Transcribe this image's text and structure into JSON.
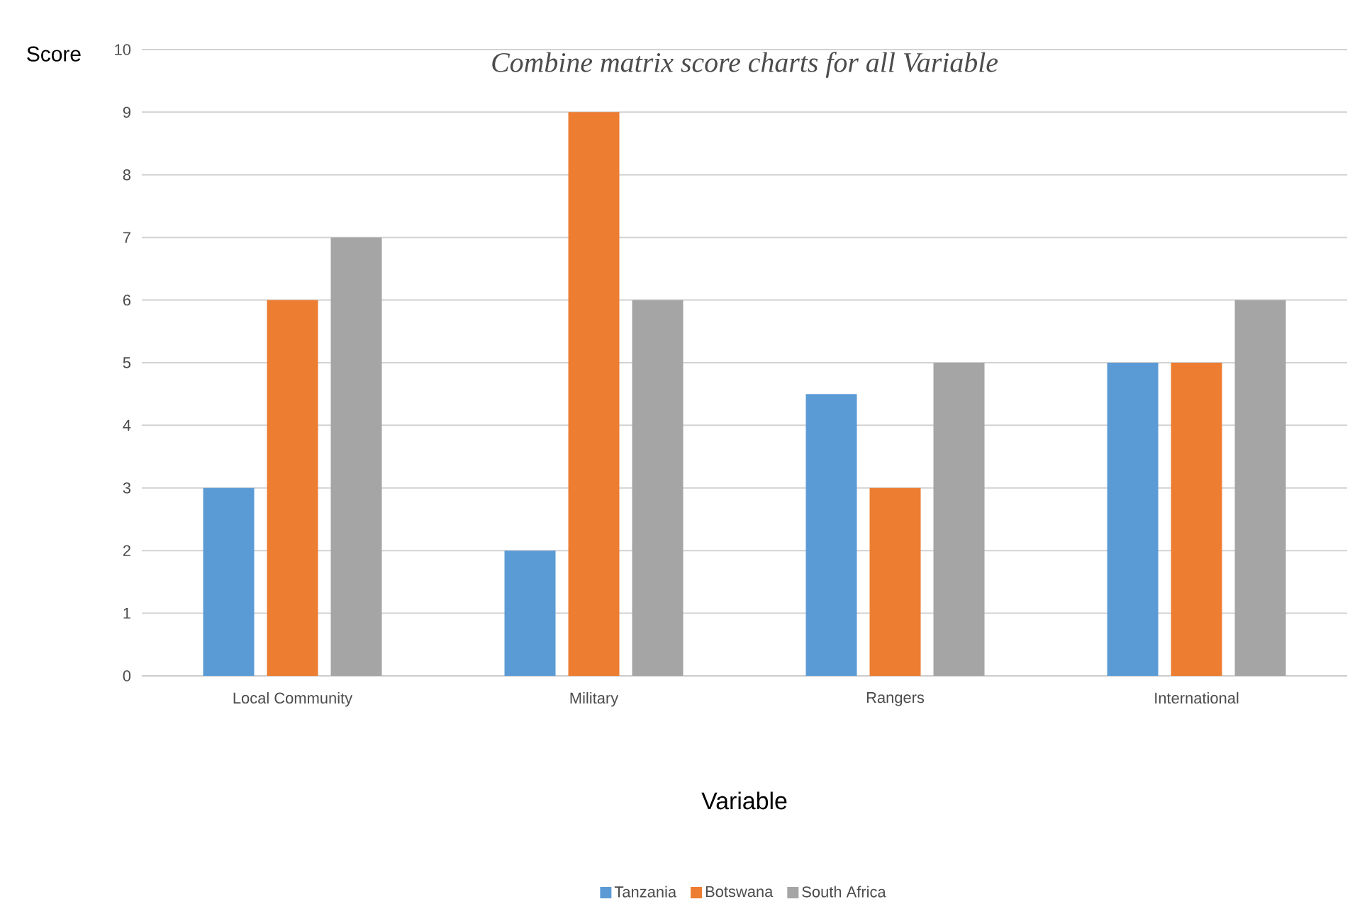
{
  "chart_data": {
    "type": "bar",
    "title": "Combine matrix score charts for all Variable",
    "xlabel": "Variable",
    "ylabel": "Score",
    "categories": [
      "Local Community",
      "Military",
      "Rangers",
      "International"
    ],
    "series": [
      {
        "name": "Tanzania",
        "color": "#5b9bd5",
        "values": [
          3,
          2,
          4.5,
          5
        ]
      },
      {
        "name": "Botswana",
        "color": "#ed7d31",
        "values": [
          6,
          9,
          3,
          5
        ]
      },
      {
        "name": "South Africa",
        "color": "#a5a5a5",
        "values": [
          7,
          6,
          5,
          6
        ]
      }
    ],
    "ylim": [
      0,
      10
    ],
    "yticks": [
      0,
      1,
      2,
      3,
      4,
      5,
      6,
      7,
      8,
      9,
      10
    ],
    "grid": "y",
    "legend": "bottom"
  }
}
